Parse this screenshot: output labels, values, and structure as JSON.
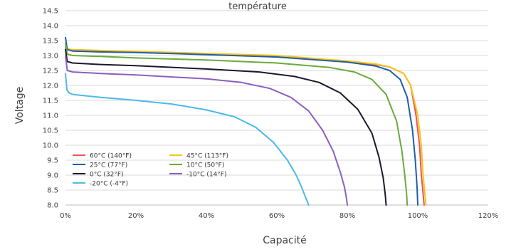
{
  "chart_data": {
    "type": "line",
    "title": "température",
    "xlabel": "Capacité",
    "ylabel": "Voltage",
    "xlim": [
      0,
      120
    ],
    "ylim": [
      8.0,
      14.5
    ],
    "x_tick_values": [
      0,
      20,
      40,
      60,
      80,
      100,
      120
    ],
    "x_tick_labels": [
      "0%",
      "20%",
      "40%",
      "60%",
      "80%",
      "100%",
      "120%"
    ],
    "y_tick_values": [
      8.0,
      8.5,
      9.0,
      9.5,
      10.0,
      10.5,
      11.0,
      11.5,
      12.0,
      12.5,
      13.0,
      13.5,
      14.0,
      14.5
    ],
    "y_tick_labels": [
      "8.0",
      "8.5",
      "9.0",
      "9.5",
      "10.0",
      "10.5",
      "11.0",
      "11.5",
      "12.0",
      "12.5",
      "13.0",
      "13.5",
      "14.0",
      "14.5"
    ],
    "grid": "horizontal",
    "legend_position": "bottom-left",
    "series": [
      {
        "name": "60°C  (140°F)",
        "color": "#e8555a",
        "x": [
          0,
          0.5,
          2,
          10,
          20,
          40,
          60,
          80,
          88,
          92,
          96,
          98,
          99.5,
          100.5,
          101,
          101.5,
          101.8
        ],
        "y": [
          13.25,
          13.2,
          13.18,
          13.15,
          13.12,
          13.05,
          12.98,
          12.8,
          12.7,
          12.62,
          12.4,
          12.0,
          11.0,
          10.0,
          9.0,
          8.4,
          8.0
        ]
      },
      {
        "name": "45°C  (113°F)",
        "color": "#f5c518",
        "x": [
          0,
          0.5,
          2,
          10,
          20,
          40,
          60,
          80,
          88,
          92,
          96,
          98,
          100,
          101,
          101.5,
          102,
          102.3
        ],
        "y": [
          13.3,
          13.22,
          13.2,
          13.17,
          13.14,
          13.07,
          13.0,
          12.82,
          12.72,
          12.62,
          12.4,
          12.0,
          11.0,
          10.0,
          9.0,
          8.4,
          8.0
        ]
      },
      {
        "name": "25°C  (77°F)",
        "color": "#1f5fa8",
        "x": [
          0,
          0.5,
          2,
          10,
          20,
          40,
          60,
          80,
          88,
          92,
          95,
          97,
          98.5,
          99.3,
          99.8,
          100
        ],
        "y": [
          13.6,
          13.2,
          13.15,
          13.12,
          13.1,
          13.03,
          12.95,
          12.78,
          12.65,
          12.5,
          12.2,
          11.6,
          10.5,
          9.5,
          8.6,
          8.0
        ]
      },
      {
        "name": "10°C  (50°F)",
        "color": "#6aaa3a",
        "x": [
          0,
          0.5,
          2,
          10,
          20,
          40,
          60,
          75,
          82,
          87,
          91,
          94,
          95.5,
          96.3,
          96.8,
          97
        ],
        "y": [
          13.4,
          13.05,
          13.0,
          12.97,
          12.92,
          12.85,
          12.75,
          12.6,
          12.45,
          12.2,
          11.7,
          10.8,
          9.8,
          9.0,
          8.4,
          8.0
        ]
      },
      {
        "name": "0°C  (32°F)",
        "color": "#1a1a2e",
        "x": [
          0,
          0.5,
          2,
          10,
          20,
          40,
          55,
          65,
          72,
          78,
          83,
          87,
          89,
          90.2,
          90.8,
          91
        ],
        "y": [
          13.2,
          12.8,
          12.75,
          12.7,
          12.66,
          12.55,
          12.45,
          12.3,
          12.1,
          11.75,
          11.2,
          10.4,
          9.6,
          8.9,
          8.3,
          8.0
        ]
      },
      {
        "name": "-10°C  (14°F)",
        "color": "#8b5fbf",
        "x": [
          0,
          0.5,
          2,
          10,
          20,
          40,
          50,
          58,
          64,
          69,
          73,
          76,
          78,
          79.2,
          79.8,
          80
        ],
        "y": [
          13.0,
          12.5,
          12.45,
          12.4,
          12.35,
          12.22,
          12.1,
          11.9,
          11.6,
          11.15,
          10.5,
          9.8,
          9.1,
          8.6,
          8.2,
          8.0
        ]
      },
      {
        "name": "-20°C  (-4°F)",
        "color": "#4db8e8",
        "x": [
          0,
          0.4,
          1,
          2,
          10,
          20,
          30,
          40,
          48,
          54,
          59,
          63,
          65.5,
          67,
          68,
          68.7,
          69
        ],
        "y": [
          12.4,
          11.85,
          11.75,
          11.7,
          11.6,
          11.5,
          11.38,
          11.18,
          10.95,
          10.6,
          10.1,
          9.5,
          9.0,
          8.6,
          8.3,
          8.1,
          8.0
        ]
      }
    ]
  }
}
